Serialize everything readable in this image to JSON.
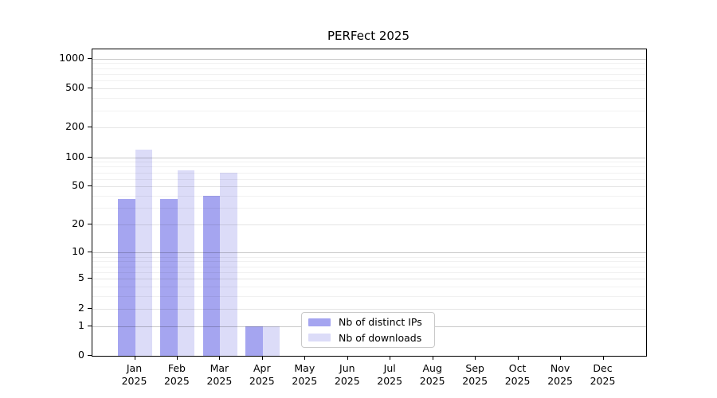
{
  "figure": {
    "background": "#ffffff"
  },
  "chart_data": {
    "type": "bar",
    "title": "PERFect 2025",
    "categories": [
      "Jan",
      "Feb",
      "Mar",
      "Apr",
      "May",
      "Jun",
      "Jul",
      "Aug",
      "Sep",
      "Oct",
      "Nov",
      "Dec"
    ],
    "x_tick_year": "2025",
    "series": [
      {
        "name": "Nb of distinct IPs",
        "color": "#a5a5f0",
        "values": [
          37,
          37,
          40,
          1,
          0,
          0,
          0,
          0,
          0,
          0,
          0,
          0
        ]
      },
      {
        "name": "Nb of downloads",
        "color": "#dcdcf8",
        "values": [
          120,
          73,
          70,
          1,
          0,
          0,
          0,
          0,
          0,
          0,
          0,
          0
        ]
      }
    ],
    "y_ticks": [
      0,
      1,
      2,
      5,
      10,
      20,
      50,
      100,
      200,
      500,
      1000
    ],
    "y_scale": "log10(1+value)",
    "ylim": [
      0,
      1235
    ],
    "grid": "on",
    "legend_position": "bottom-center"
  },
  "colors": {
    "axis": "#000000",
    "grid_decade": "rgba(0,0,0,0.21)",
    "grid_labeled": "rgba(0,0,0,0.10)",
    "grid_minor": "rgba(0,0,0,0.055)",
    "text": "#000000",
    "legend_border": "#c9c9c9",
    "legend_background": "#ffffff"
  }
}
